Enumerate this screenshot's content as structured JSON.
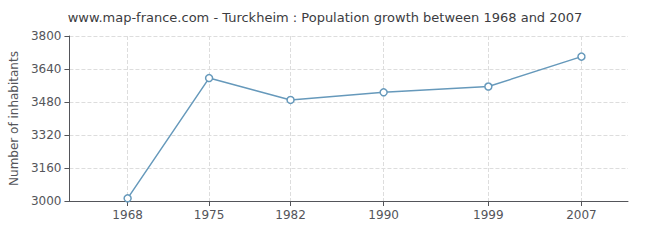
{
  "chart_data": {
    "type": "line",
    "title": "www.map-france.com - Turckheim : Population growth between 1968 and 2007",
    "ylabel": "Number of inhabitants",
    "x": [
      1968,
      1975,
      1982,
      1990,
      1999,
      2007
    ],
    "values": [
      3013,
      3596,
      3490,
      3527,
      3555,
      3700
    ],
    "color": "#6699bb",
    "marker": "circle",
    "xlim": [
      1963,
      2011
    ],
    "xticks": [
      1968,
      1975,
      1982,
      1990,
      1999,
      2007
    ],
    "ylim": [
      3000,
      3800
    ],
    "yticks": [
      3000,
      3160,
      3320,
      3480,
      3640,
      3800
    ],
    "grid": true
  }
}
